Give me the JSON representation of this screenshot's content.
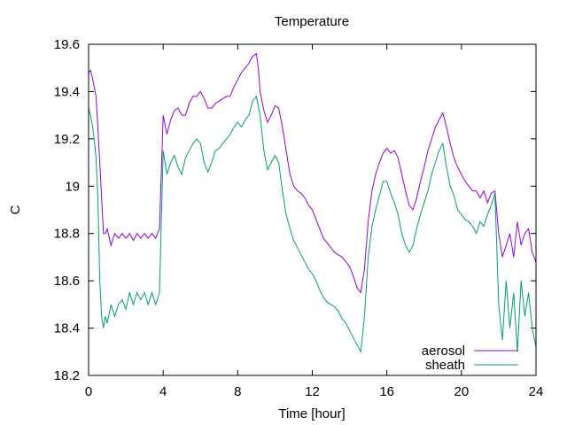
{
  "chart_data": {
    "type": "line",
    "title": "Temperature",
    "xlabel": "Time [hour]",
    "ylabel": "C",
    "xlim": [
      0,
      24
    ],
    "ylim": [
      18.2,
      19.6
    ],
    "x_ticks": [
      0,
      4,
      8,
      12,
      16,
      20,
      24
    ],
    "y_ticks": [
      18.2,
      18.4,
      18.6,
      18.8,
      19,
      19.2,
      19.4,
      19.6
    ],
    "y_tick_labels": [
      "18.2",
      "18.4",
      "18.6",
      "18.8",
      "19",
      "19.2",
      "19.4",
      "19.6"
    ],
    "grid": false,
    "legend_position": "bottom-right",
    "series": [
      {
        "name": "aerosol",
        "color": "#9400d3",
        "points": [
          [
            0.0,
            19.48
          ],
          [
            0.1,
            19.49
          ],
          [
            0.2,
            19.46
          ],
          [
            0.3,
            19.42
          ],
          [
            0.4,
            19.38
          ],
          [
            0.5,
            19.25
          ],
          [
            0.6,
            19.1
          ],
          [
            0.7,
            18.95
          ],
          [
            0.8,
            18.8
          ],
          [
            0.9,
            18.8
          ],
          [
            1.0,
            18.82
          ],
          [
            1.2,
            18.75
          ],
          [
            1.4,
            18.8
          ],
          [
            1.6,
            18.78
          ],
          [
            1.8,
            18.8
          ],
          [
            2.0,
            18.78
          ],
          [
            2.2,
            18.8
          ],
          [
            2.4,
            18.77
          ],
          [
            2.6,
            18.8
          ],
          [
            2.8,
            18.78
          ],
          [
            3.0,
            18.8
          ],
          [
            3.2,
            18.78
          ],
          [
            3.4,
            18.8
          ],
          [
            3.6,
            18.78
          ],
          [
            3.8,
            18.82
          ],
          [
            4.0,
            19.3
          ],
          [
            4.2,
            19.22
          ],
          [
            4.4,
            19.28
          ],
          [
            4.6,
            19.32
          ],
          [
            4.8,
            19.33
          ],
          [
            5.0,
            19.3
          ],
          [
            5.2,
            19.3
          ],
          [
            5.4,
            19.35
          ],
          [
            5.6,
            19.38
          ],
          [
            5.8,
            19.38
          ],
          [
            6.0,
            19.4
          ],
          [
            6.2,
            19.37
          ],
          [
            6.4,
            19.33
          ],
          [
            6.6,
            19.33
          ],
          [
            6.8,
            19.35
          ],
          [
            7.0,
            19.36
          ],
          [
            7.2,
            19.37
          ],
          [
            7.4,
            19.38
          ],
          [
            7.6,
            19.38
          ],
          [
            7.8,
            19.42
          ],
          [
            8.0,
            19.45
          ],
          [
            8.2,
            19.48
          ],
          [
            8.4,
            19.5
          ],
          [
            8.6,
            19.52
          ],
          [
            8.8,
            19.55
          ],
          [
            9.0,
            19.56
          ],
          [
            9.1,
            19.5
          ],
          [
            9.2,
            19.4
          ],
          [
            9.4,
            19.32
          ],
          [
            9.6,
            19.27
          ],
          [
            9.8,
            19.3
          ],
          [
            10.0,
            19.34
          ],
          [
            10.2,
            19.33
          ],
          [
            10.4,
            19.25
          ],
          [
            10.6,
            19.15
          ],
          [
            10.8,
            19.05
          ],
          [
            11.0,
            19.0
          ],
          [
            11.2,
            18.98
          ],
          [
            11.4,
            18.97
          ],
          [
            11.6,
            18.95
          ],
          [
            11.8,
            18.92
          ],
          [
            12.0,
            18.9
          ],
          [
            12.2,
            18.86
          ],
          [
            12.4,
            18.82
          ],
          [
            12.6,
            18.78
          ],
          [
            12.8,
            18.76
          ],
          [
            13.0,
            18.74
          ],
          [
            13.2,
            18.72
          ],
          [
            13.4,
            18.71
          ],
          [
            13.6,
            18.7
          ],
          [
            13.8,
            18.68
          ],
          [
            14.0,
            18.66
          ],
          [
            14.2,
            18.62
          ],
          [
            14.4,
            18.57
          ],
          [
            14.6,
            18.55
          ],
          [
            14.8,
            18.65
          ],
          [
            15.0,
            18.85
          ],
          [
            15.2,
            18.98
          ],
          [
            15.4,
            19.05
          ],
          [
            15.6,
            19.1
          ],
          [
            15.8,
            19.14
          ],
          [
            16.0,
            19.16
          ],
          [
            16.2,
            19.14
          ],
          [
            16.4,
            19.15
          ],
          [
            16.6,
            19.12
          ],
          [
            16.8,
            19.05
          ],
          [
            17.0,
            18.98
          ],
          [
            17.2,
            18.92
          ],
          [
            17.4,
            18.9
          ],
          [
            17.6,
            18.95
          ],
          [
            17.8,
            19.02
          ],
          [
            18.0,
            19.08
          ],
          [
            18.2,
            19.15
          ],
          [
            18.4,
            19.2
          ],
          [
            18.6,
            19.25
          ],
          [
            18.8,
            19.28
          ],
          [
            19.0,
            19.31
          ],
          [
            19.2,
            19.25
          ],
          [
            19.4,
            19.18
          ],
          [
            19.6,
            19.12
          ],
          [
            19.8,
            19.08
          ],
          [
            20.0,
            19.05
          ],
          [
            20.2,
            19.02
          ],
          [
            20.4,
            19.0
          ],
          [
            20.6,
            18.98
          ],
          [
            20.8,
            18.98
          ],
          [
            21.0,
            18.95
          ],
          [
            21.2,
            18.98
          ],
          [
            21.4,
            18.93
          ],
          [
            21.6,
            18.97
          ],
          [
            21.8,
            18.98
          ],
          [
            22.0,
            18.8
          ],
          [
            22.2,
            18.7
          ],
          [
            22.4,
            18.75
          ],
          [
            22.6,
            18.8
          ],
          [
            22.8,
            18.7
          ],
          [
            23.0,
            18.85
          ],
          [
            23.2,
            18.75
          ],
          [
            23.4,
            18.8
          ],
          [
            23.6,
            18.82
          ],
          [
            23.8,
            18.72
          ],
          [
            24.0,
            18.68
          ]
        ]
      },
      {
        "name": "sheath",
        "color": "#009e73",
        "points": [
          [
            0.0,
            19.33
          ],
          [
            0.1,
            19.3
          ],
          [
            0.2,
            19.26
          ],
          [
            0.3,
            19.2
          ],
          [
            0.4,
            19.12
          ],
          [
            0.5,
            18.95
          ],
          [
            0.6,
            18.6
          ],
          [
            0.7,
            18.45
          ],
          [
            0.8,
            18.4
          ],
          [
            0.9,
            18.45
          ],
          [
            1.0,
            18.42
          ],
          [
            1.2,
            18.5
          ],
          [
            1.4,
            18.45
          ],
          [
            1.6,
            18.5
          ],
          [
            1.8,
            18.52
          ],
          [
            2.0,
            18.48
          ],
          [
            2.2,
            18.55
          ],
          [
            2.4,
            18.5
          ],
          [
            2.6,
            18.55
          ],
          [
            2.8,
            18.52
          ],
          [
            3.0,
            18.55
          ],
          [
            3.2,
            18.5
          ],
          [
            3.4,
            18.55
          ],
          [
            3.6,
            18.5
          ],
          [
            3.8,
            18.55
          ],
          [
            4.0,
            19.15
          ],
          [
            4.2,
            19.05
          ],
          [
            4.4,
            19.1
          ],
          [
            4.6,
            19.13
          ],
          [
            4.8,
            19.08
          ],
          [
            5.0,
            19.05
          ],
          [
            5.2,
            19.12
          ],
          [
            5.4,
            19.15
          ],
          [
            5.6,
            19.18
          ],
          [
            5.8,
            19.2
          ],
          [
            6.0,
            19.18
          ],
          [
            6.2,
            19.1
          ],
          [
            6.4,
            19.06
          ],
          [
            6.6,
            19.1
          ],
          [
            6.8,
            19.15
          ],
          [
            7.0,
            19.16
          ],
          [
            7.2,
            19.18
          ],
          [
            7.4,
            19.2
          ],
          [
            7.6,
            19.22
          ],
          [
            7.8,
            19.25
          ],
          [
            8.0,
            19.27
          ],
          [
            8.2,
            19.25
          ],
          [
            8.4,
            19.28
          ],
          [
            8.6,
            19.3
          ],
          [
            8.8,
            19.36
          ],
          [
            9.0,
            19.38
          ],
          [
            9.2,
            19.3
          ],
          [
            9.4,
            19.15
          ],
          [
            9.6,
            19.07
          ],
          [
            9.8,
            19.1
          ],
          [
            10.0,
            19.13
          ],
          [
            10.2,
            19.1
          ],
          [
            10.4,
            18.98
          ],
          [
            10.6,
            18.88
          ],
          [
            10.8,
            18.82
          ],
          [
            11.0,
            18.77
          ],
          [
            11.2,
            18.74
          ],
          [
            11.4,
            18.71
          ],
          [
            11.6,
            18.68
          ],
          [
            11.8,
            18.65
          ],
          [
            12.0,
            18.63
          ],
          [
            12.2,
            18.6
          ],
          [
            12.4,
            18.56
          ],
          [
            12.6,
            18.53
          ],
          [
            12.8,
            18.51
          ],
          [
            13.0,
            18.5
          ],
          [
            13.2,
            18.49
          ],
          [
            13.4,
            18.47
          ],
          [
            13.6,
            18.44
          ],
          [
            13.8,
            18.42
          ],
          [
            14.0,
            18.39
          ],
          [
            14.2,
            18.36
          ],
          [
            14.4,
            18.33
          ],
          [
            14.6,
            18.3
          ],
          [
            14.8,
            18.45
          ],
          [
            15.0,
            18.7
          ],
          [
            15.2,
            18.83
          ],
          [
            15.4,
            18.9
          ],
          [
            15.6,
            18.96
          ],
          [
            15.8,
            19.02
          ],
          [
            16.0,
            19.02
          ],
          [
            16.2,
            18.97
          ],
          [
            16.4,
            18.93
          ],
          [
            16.6,
            18.88
          ],
          [
            16.8,
            18.8
          ],
          [
            17.0,
            18.75
          ],
          [
            17.2,
            18.72
          ],
          [
            17.4,
            18.75
          ],
          [
            17.6,
            18.82
          ],
          [
            17.8,
            18.88
          ],
          [
            18.0,
            18.93
          ],
          [
            18.2,
            18.98
          ],
          [
            18.4,
            19.05
          ],
          [
            18.6,
            19.1
          ],
          [
            18.8,
            19.15
          ],
          [
            19.0,
            19.18
          ],
          [
            19.2,
            19.08
          ],
          [
            19.4,
            19.0
          ],
          [
            19.6,
            18.96
          ],
          [
            19.8,
            18.9
          ],
          [
            20.0,
            18.88
          ],
          [
            20.2,
            18.86
          ],
          [
            20.4,
            18.85
          ],
          [
            20.6,
            18.83
          ],
          [
            20.8,
            18.8
          ],
          [
            21.0,
            18.85
          ],
          [
            21.2,
            18.83
          ],
          [
            21.4,
            18.88
          ],
          [
            21.6,
            18.92
          ],
          [
            21.8,
            18.97
          ],
          [
            22.0,
            18.5
          ],
          [
            22.2,
            18.35
          ],
          [
            22.4,
            18.6
          ],
          [
            22.6,
            18.4
          ],
          [
            22.8,
            18.55
          ],
          [
            23.0,
            18.3
          ],
          [
            23.2,
            18.6
          ],
          [
            23.4,
            18.45
          ],
          [
            23.6,
            18.55
          ],
          [
            23.8,
            18.4
          ],
          [
            24.0,
            18.32
          ]
        ]
      }
    ]
  }
}
